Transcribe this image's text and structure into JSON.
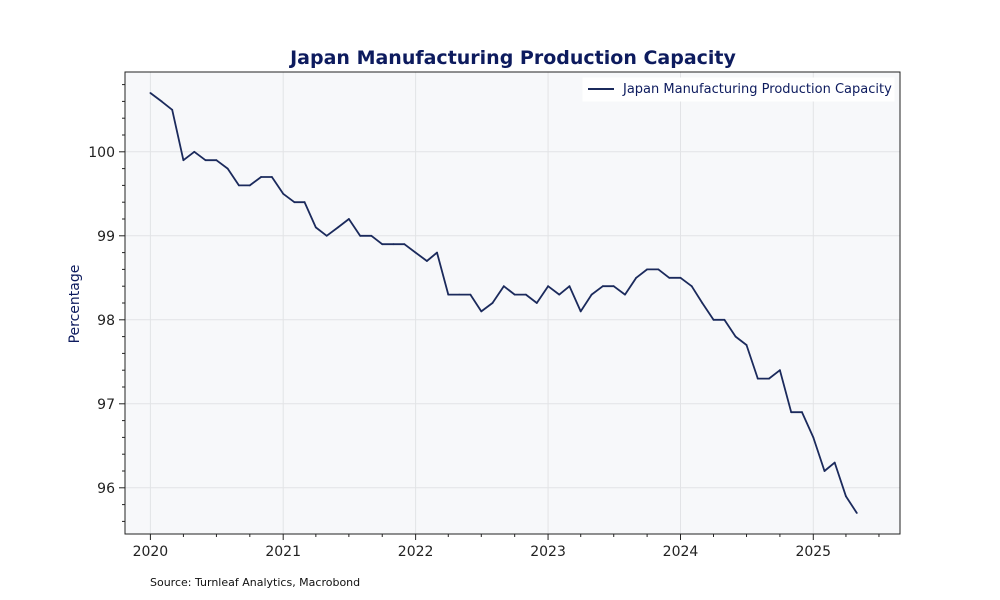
{
  "colors": {
    "line": "#1b2a5c",
    "title": "#0d1b5e",
    "plot_background": "#f7f8fa",
    "grid": "#e2e3e6",
    "axis": "#222222"
  },
  "source_note": "Source: Turnleaf Analytics, Macrobond",
  "chart_data": {
    "type": "line",
    "title": "Japan Manufacturing Production Capacity",
    "xlabel": "",
    "ylabel": "Percentage",
    "xlim": [
      "2019-10-23",
      "2025-08-28"
    ],
    "ylim": [
      95.45,
      100.95
    ],
    "x_tick_labels": [
      "2020",
      "2021",
      "2022",
      "2023",
      "2024",
      "2025"
    ],
    "y_tick_values": [
      96,
      97,
      98,
      99,
      100
    ],
    "y_tick_labels": [
      "96",
      "97",
      "98",
      "99",
      "100"
    ],
    "grid": true,
    "legend_position": "top-right",
    "series": [
      {
        "name": "Japan Manufacturing Production Capacity",
        "x": [
          "2020-01",
          "2020-02",
          "2020-03",
          "2020-04",
          "2020-05",
          "2020-06",
          "2020-07",
          "2020-08",
          "2020-09",
          "2020-10",
          "2020-11",
          "2020-12",
          "2021-01",
          "2021-02",
          "2021-03",
          "2021-04",
          "2021-05",
          "2021-06",
          "2021-07",
          "2021-08",
          "2021-09",
          "2021-10",
          "2021-11",
          "2021-12",
          "2022-01",
          "2022-02",
          "2022-03",
          "2022-04",
          "2022-05",
          "2022-06",
          "2022-07",
          "2022-08",
          "2022-09",
          "2022-10",
          "2022-11",
          "2022-12",
          "2023-01",
          "2023-02",
          "2023-03",
          "2023-04",
          "2023-05",
          "2023-06",
          "2023-07",
          "2023-08",
          "2023-09",
          "2023-10",
          "2023-11",
          "2023-12",
          "2024-01",
          "2024-02",
          "2024-03",
          "2024-04",
          "2024-05",
          "2024-06",
          "2024-07",
          "2024-08",
          "2024-09",
          "2024-10",
          "2024-11",
          "2024-12",
          "2025-01",
          "2025-02",
          "2025-03",
          "2025-04",
          "2025-05"
        ],
        "values": [
          100.7,
          100.6,
          100.5,
          99.9,
          100.0,
          99.9,
          99.9,
          99.8,
          99.6,
          99.6,
          99.7,
          99.7,
          99.5,
          99.4,
          99.4,
          99.1,
          99.0,
          99.1,
          99.2,
          99.0,
          99.0,
          98.9,
          98.9,
          98.9,
          98.8,
          98.7,
          98.8,
          98.3,
          98.3,
          98.3,
          98.1,
          98.2,
          98.4,
          98.3,
          98.3,
          98.2,
          98.4,
          98.3,
          98.4,
          98.1,
          98.3,
          98.4,
          98.4,
          98.3,
          98.5,
          98.6,
          98.6,
          98.5,
          98.5,
          98.4,
          98.2,
          98.0,
          98.0,
          97.8,
          97.7,
          97.3,
          97.3,
          97.4,
          96.9,
          96.9,
          96.6,
          96.2,
          96.3,
          95.9,
          95.7
        ]
      }
    ]
  }
}
